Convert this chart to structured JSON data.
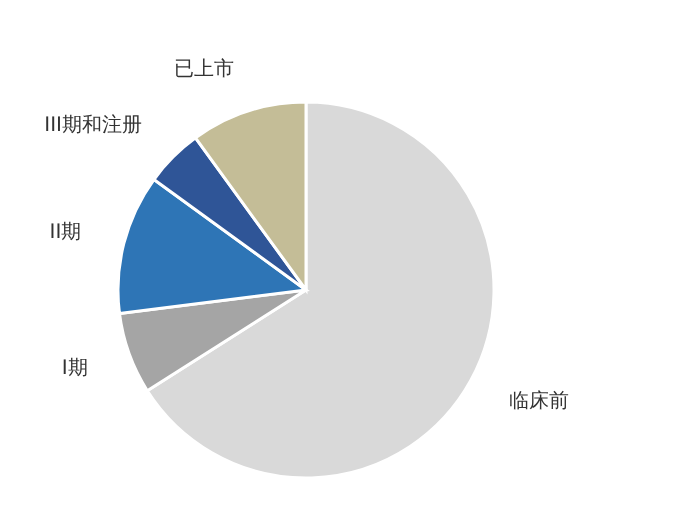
{
  "chart_data": {
    "type": "pie",
    "categories": [
      "临床前",
      "I期",
      "II期",
      "III期和注册",
      "已上市"
    ],
    "values": [
      66,
      7,
      12,
      5,
      10
    ],
    "colors": [
      "#d9d9d9",
      "#a5a5a5",
      "#2e75b6",
      "#2f5597",
      "#c4bd97"
    ]
  }
}
